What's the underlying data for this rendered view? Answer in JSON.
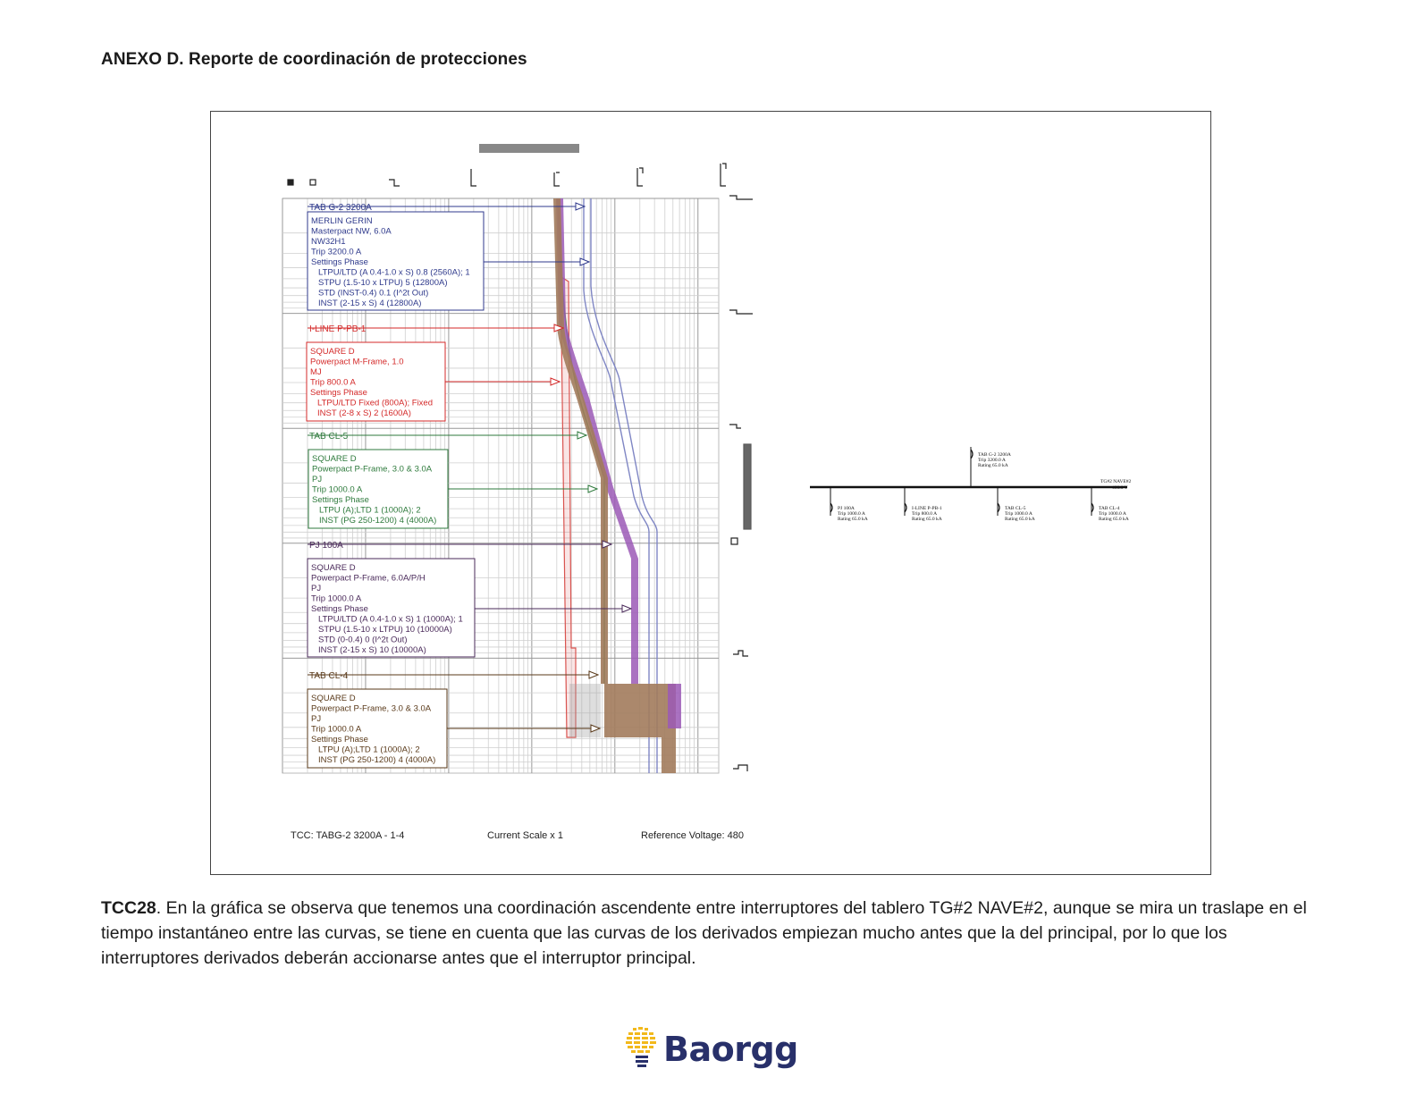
{
  "document": {
    "title": "ANEXO D. Reporte de coordinación de protecciones"
  },
  "tcc": {
    "footer": {
      "tcc_name": "TCC:  TABG-2 3200A - 1-4",
      "current_scale": "Current Scale  x 1",
      "reference_voltage": "Reference Voltage: 480"
    },
    "devices": [
      {
        "tag": "TAB G-2 3200A",
        "color": "#2f3a8c",
        "lines": [
          "MERLIN GERIN",
          "Masterpact NW, 6.0A",
          "NW32H1",
          "Trip 3200.0 A",
          "Settings Phase",
          "LTPU/LTD (A 0.4-1.0 x S) 0.8 (2560A); 1",
          "STPU (1.5-10 x LTPU) 5 (12800A)",
          "STD (INST-0.4) 0.1 (I^2t Out)",
          "INST (2-15 x S) 4 (12800A)"
        ]
      },
      {
        "tag": "I-LINE P-PB-1",
        "color": "#d42a2a",
        "lines": [
          "SQUARE D",
          "Powerpact M-Frame, 1.0",
          "MJ",
          "Trip 800.0 A",
          "Settings Phase",
          "LTPU/LTD Fixed (800A); Fixed",
          "INST (2-8 x S) 2 (1600A)"
        ]
      },
      {
        "tag": "TAB CL-5",
        "color": "#2e7a3c",
        "lines": [
          "SQUARE D",
          "Powerpact P-Frame, 3.0 & 3.0A",
          "PJ",
          "Trip 1000.0 A",
          "Settings Phase",
          "LTPU (A);LTD 1 (1000A); 2",
          "INST (PG 250-1200) 4 (4000A)"
        ]
      },
      {
        "tag": "PJ 100A",
        "color": "#4a2a5a",
        "lines": [
          "SQUARE D",
          "Powerpact P-Frame, 6.0A/P/H",
          "PJ",
          "Trip 1000.0 A",
          "Settings Phase",
          "LTPU/LTD (A 0.4-1.0 x S) 1 (1000A); 1",
          "STPU (1.5-10 x LTPU) 10 (10000A)",
          "STD (0-0.4) 0 (I^2t Out)",
          "INST (2-15 x S) 10 (10000A)"
        ]
      },
      {
        "tag": "TAB CL-4",
        "color": "#5a3a1a",
        "lines": [
          "SQUARE D",
          "Powerpact P-Frame, 3.0 & 3.0A",
          "PJ",
          "Trip 1000.0 A",
          "Settings Phase",
          "LTPU (A);LTD 1 (1000A); 2",
          "INST (PG 250-1200) 4 (4000A)"
        ]
      }
    ],
    "one_line": {
      "bus_label": "TG#2 NAVE#2",
      "bus_voltage": "480.0 V",
      "main": {
        "name": "TAB G-2 3200A",
        "trip": "Trip 3200.0 A",
        "rating": "Rating 65.0 kA"
      },
      "feeders": [
        {
          "name": "PJ 100A",
          "trip": "Trip 1000.0 A",
          "rating": "Rating 65.0 kA"
        },
        {
          "name": "I-LINE P-PB-1",
          "trip": "Trip 800.0 A",
          "rating": "Rating 65.0 kA"
        },
        {
          "name": "TAB CL-5",
          "trip": "Trip 1000.0 A",
          "rating": "Rating 65.0 kA"
        },
        {
          "name": "TAB CL-4",
          "trip": "Trip 1000.0 A",
          "rating": "Rating 65.0 kA"
        }
      ]
    },
    "curve_colors": {
      "main": "#7f86c4",
      "red": "#d9534f",
      "green": "#3b8a47",
      "purple": "#9b59b6",
      "brown": "#a27b5c"
    }
  },
  "caption": {
    "lead": "TCC28",
    "text": ". En la gráfica se observa que tenemos una coordinación ascendente entre interruptores del tablero TG#2 NAVE#2, aunque se mira un traslape en el tiempo instantáneo entre las curvas, se tiene en cuenta que las curvas de los derivados empiezan mucho antes que la del principal, por lo que los interruptores derivados deberán accionarse antes que el interruptor principal."
  },
  "logo": {
    "brand": "Baorgg"
  }
}
